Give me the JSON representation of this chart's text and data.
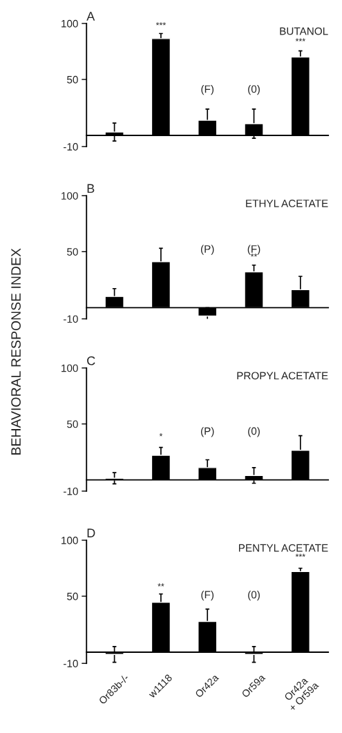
{
  "chart_data": [
    {
      "type": "bar",
      "title": "BUTANOL",
      "subtitle": "A",
      "categories": [
        null,
        null,
        null,
        null,
        null
      ],
      "values": [
        3,
        86.5,
        13.5,
        10.5,
        70
      ],
      "errors": [
        8,
        4.5,
        10,
        13,
        5.5
      ],
      "color": "#000000",
      "ylim": [
        -10,
        100
      ],
      "yticks": [
        -10,
        50,
        100
      ],
      "tick_labels": "y",
      "annotations": [
        "***",
        "(F)",
        "(0)",
        "***"
      ]
    },
    {
      "type": "bar",
      "title": "ETHYL ACETATE",
      "subtitle": "B",
      "ylabel": "BEHAVIORAL RESPONSE INDEX",
      "categories": [
        null,
        null,
        null,
        null,
        null
      ],
      "values": [
        10,
        41,
        -7.5,
        32,
        16
      ],
      "errors": [
        7,
        12,
        7.5,
        6,
        12
      ],
      "color": "#000000",
      "ylim": [
        -10,
        100
      ],
      "yticks": [
        -10,
        50,
        100
      ],
      "tick_labels": "y",
      "annotations": [
        "(P)",
        "(F)",
        "**"
      ]
    },
    {
      "type": "bar",
      "title": "PROPYL ACETATE",
      "subtitle": "C",
      "categories": [
        null,
        null,
        null,
        null,
        null
      ],
      "values": [
        1.5,
        22,
        11,
        4,
        26.5
      ],
      "errors": [
        5,
        7,
        7,
        7,
        13
      ],
      "color": "#000000",
      "ylim": [
        -10,
        100
      ],
      "yticks": [
        -10,
        50,
        100
      ],
      "tick_labels": "y",
      "annotations": [
        "*",
        "(P)",
        "(0)"
      ]
    },
    {
      "type": "bar",
      "title": "PENTYL ACETATE",
      "subtitle": "D",
      "categories": [
        "Or83b-/-",
        "w1118",
        "Or42a",
        "Or59a",
        "Or42a\n+ Or59a"
      ],
      "values": [
        -2,
        44.5,
        27.5,
        -2,
        72
      ],
      "errors": [
        7,
        7.5,
        11,
        7,
        3
      ],
      "color": "#000000",
      "ylim": [
        -10,
        100
      ],
      "yticks": [
        -10,
        50,
        100
      ],
      "annotations": [
        "**",
        "(F)",
        "(0)",
        "***"
      ]
    }
  ]
}
